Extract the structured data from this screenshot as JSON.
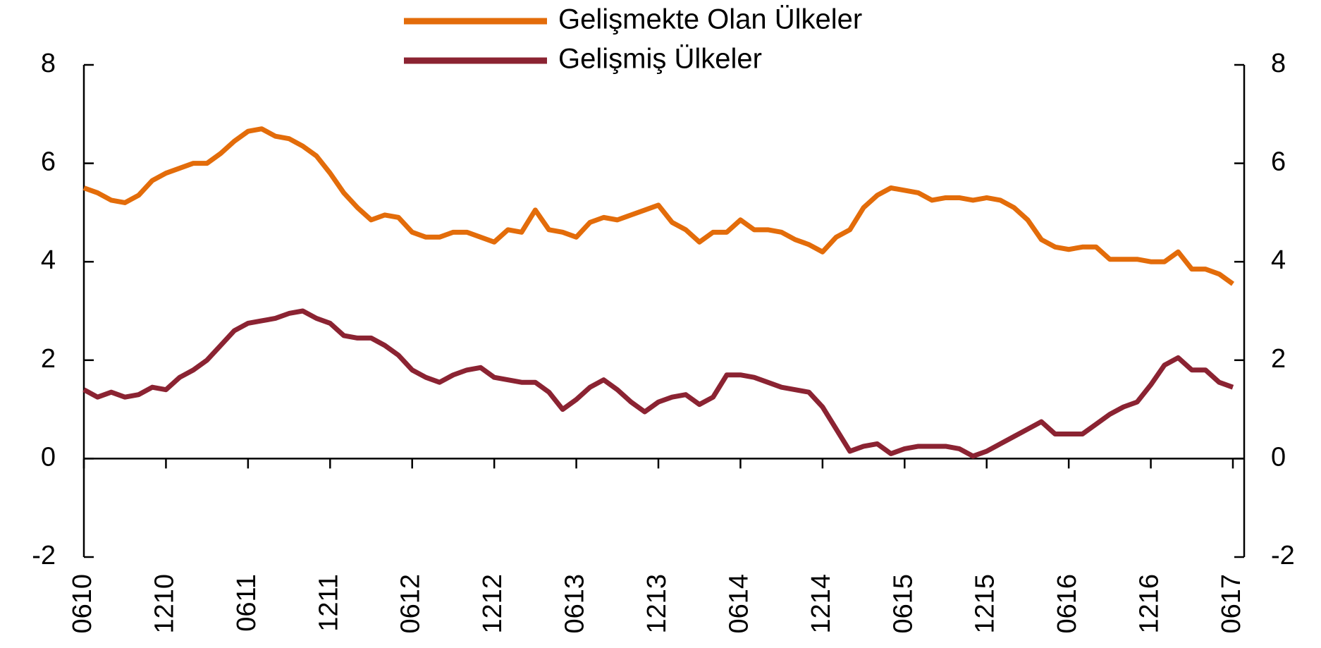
{
  "chart_data": {
    "type": "line",
    "categories": [
      "0610",
      null,
      null,
      null,
      null,
      null,
      "1210",
      null,
      null,
      null,
      null,
      null,
      "0611",
      null,
      null,
      null,
      null,
      null,
      "1211",
      null,
      null,
      null,
      null,
      null,
      "0612",
      null,
      null,
      null,
      null,
      null,
      "1212",
      null,
      null,
      null,
      null,
      null,
      "0613",
      null,
      null,
      null,
      null,
      null,
      "1213",
      null,
      null,
      null,
      null,
      null,
      "0614",
      null,
      null,
      null,
      null,
      null,
      "1214",
      null,
      null,
      null,
      null,
      null,
      "0615",
      null,
      null,
      null,
      null,
      null,
      "1215",
      null,
      null,
      null,
      null,
      null,
      "0616",
      null,
      null,
      null,
      null,
      null,
      "1216",
      null,
      null,
      null,
      null,
      null,
      "0617"
    ],
    "series": [
      {
        "name": "Gelişmekte Olan Ülkeler",
        "color": "#e36c0a",
        "values": [
          5.5,
          5.4,
          5.25,
          5.2,
          5.35,
          5.65,
          5.8,
          5.9,
          6.0,
          6.0,
          6.2,
          6.45,
          6.65,
          6.7,
          6.55,
          6.5,
          6.35,
          6.15,
          5.8,
          5.4,
          5.1,
          4.85,
          4.95,
          4.9,
          4.6,
          4.5,
          4.5,
          4.6,
          4.6,
          4.5,
          4.4,
          4.65,
          4.6,
          5.05,
          4.65,
          4.6,
          4.5,
          4.8,
          4.9,
          4.85,
          4.95,
          5.05,
          5.15,
          4.8,
          4.65,
          4.4,
          4.6,
          4.6,
          4.85,
          4.65,
          4.65,
          4.6,
          4.45,
          4.35,
          4.2,
          4.5,
          4.65,
          5.1,
          5.35,
          5.5,
          5.45,
          5.4,
          5.25,
          5.3,
          5.3,
          5.25,
          5.3,
          5.25,
          5.1,
          4.85,
          4.45,
          4.3,
          4.25,
          4.3,
          4.3,
          4.05,
          4.05,
          4.05,
          4.0,
          4.0,
          4.2,
          3.85,
          3.85,
          3.75,
          3.55
        ]
      },
      {
        "name": "Gelişmiş Ülkeler",
        "color": "#8b2332",
        "values": [
          1.4,
          1.25,
          1.35,
          1.25,
          1.3,
          1.45,
          1.4,
          1.65,
          1.8,
          2.0,
          2.3,
          2.6,
          2.75,
          2.8,
          2.85,
          2.95,
          3.0,
          2.85,
          2.75,
          2.5,
          2.45,
          2.45,
          2.3,
          2.1,
          1.8,
          1.65,
          1.55,
          1.7,
          1.8,
          1.85,
          1.65,
          1.6,
          1.55,
          1.55,
          1.35,
          1.0,
          1.2,
          1.45,
          1.6,
          1.4,
          1.15,
          0.95,
          1.15,
          1.25,
          1.3,
          1.1,
          1.25,
          1.7,
          1.7,
          1.65,
          1.55,
          1.45,
          1.4,
          1.35,
          1.05,
          0.6,
          0.15,
          0.25,
          0.3,
          0.1,
          0.2,
          0.25,
          0.25,
          0.25,
          0.2,
          0.05,
          0.15,
          0.3,
          0.45,
          0.6,
          0.75,
          0.5,
          0.5,
          0.5,
          0.7,
          0.9,
          1.05,
          1.15,
          1.5,
          1.9,
          2.05,
          1.8,
          1.8,
          1.55,
          1.45
        ]
      }
    ],
    "ylim": [
      -2,
      8
    ],
    "yticks": [
      -2,
      0,
      2,
      4,
      6,
      8
    ],
    "y2lim": [
      -2,
      8
    ],
    "y2ticks": [
      -2,
      0,
      2,
      4,
      6,
      8
    ],
    "legend": "top"
  }
}
